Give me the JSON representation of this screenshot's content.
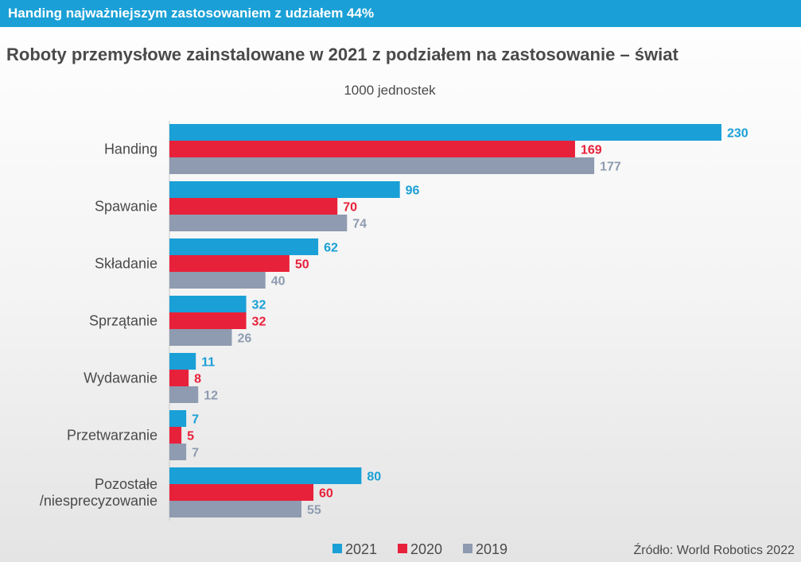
{
  "banner": "Handing najważniejszym zastosowaniem z udziałem 44%",
  "colors": {
    "banner": "#1aa0d6",
    "series_2021": "#1aa0d6",
    "series_2020": "#e8213a",
    "series_2019": "#8e9bb0",
    "text": "#4a4a4a"
  },
  "chart_data": {
    "type": "bar",
    "orientation": "horizontal",
    "title": "Roboty przemysłowe zainstalowane w 2021 z podziałem na zastosowanie – świat",
    "unit": "1000 jednostek",
    "categories": [
      "Handing",
      "Spawanie",
      "Składanie",
      "Sprzątanie",
      "Wydawanie",
      "Przetwarzanie",
      "Pozostałe\n/niesprecyzowanie"
    ],
    "series": [
      {
        "name": "2021",
        "values": [
          230,
          96,
          62,
          32,
          11,
          7,
          80
        ]
      },
      {
        "name": "2020",
        "values": [
          169,
          70,
          50,
          32,
          8,
          5,
          60
        ]
      },
      {
        "name": "2019",
        "values": [
          177,
          74,
          40,
          26,
          12,
          7,
          55
        ]
      }
    ],
    "xlim": [
      0,
      230
    ],
    "grid": false,
    "data_labels": true,
    "legend_position": "bottom"
  },
  "source": "Źródło: World Robotics 2022"
}
